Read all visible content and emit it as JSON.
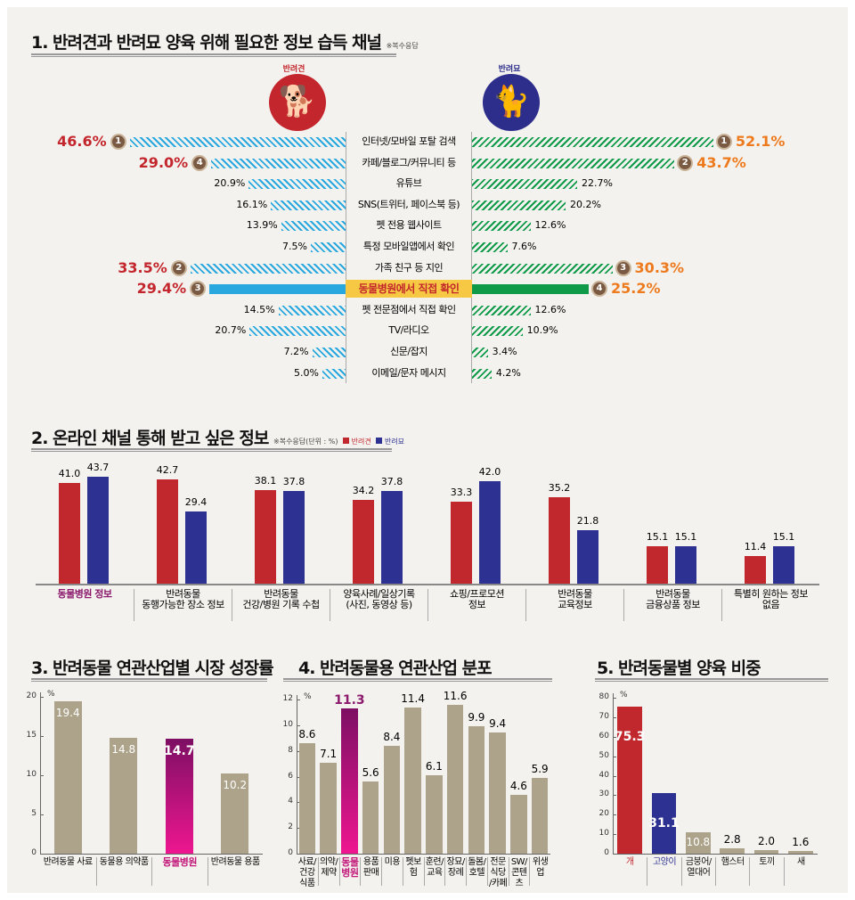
{
  "section1": {
    "title": "1. 반려견과 반려묘 양육 위해 필요한 정보 습득 채널",
    "note": "※복수응답",
    "dog_label": "반려견",
    "cat_label": "반려묘",
    "dog_color": "#c3262c",
    "cat_color": "#2d2e8c",
    "chart_data": {
      "type": "bar",
      "orientation": "horizontal-diverging",
      "categories": [
        "인터넷/모바일 포탈 검색",
        "카페/블로그/커뮤니티 등",
        "유튜브",
        "SNS(트위터, 페이스북 등)",
        "펫 전용 웹사이트",
        "특정 모바일앱에서 확인",
        "가족 친구 등 지인",
        "동물병원에서 직접 확인",
        "펫 전문점에서 직접 확인",
        "TV/라디오",
        "신문/잡지",
        "이메일/문자 메시지"
      ],
      "highlight": "동물병원에서 직접 확인",
      "series": [
        {
          "name": "반려견",
          "values": [
            46.6,
            29.0,
            20.9,
            16.1,
            13.9,
            7.5,
            33.5,
            29.4,
            14.5,
            20.7,
            7.2,
            5.0
          ],
          "labels": [
            "46.6%",
            "29.0%",
            "20.9%",
            "16.1%",
            "13.9%",
            "7.5%",
            "33.5%",
            "29.4%",
            "14.5%",
            "20.7%",
            "7.2%",
            "5.0%"
          ],
          "ranks": [
            1,
            4,
            null,
            null,
            null,
            null,
            2,
            3,
            null,
            null,
            null,
            null
          ],
          "color": "#29a8e0"
        },
        {
          "name": "반려묘",
          "values": [
            52.1,
            43.7,
            22.7,
            20.2,
            12.6,
            7.6,
            30.3,
            25.2,
            12.6,
            10.9,
            3.4,
            4.2
          ],
          "labels": [
            "52.1%",
            "43.7%",
            "22.7%",
            "20.2%",
            "12.6%",
            "7.6%",
            "30.3%",
            "25.2%",
            "12.6%",
            "10.9%",
            "3.4%",
            "4.2%"
          ],
          "ranks": [
            1,
            2,
            null,
            null,
            null,
            null,
            3,
            4,
            null,
            null,
            null,
            null
          ],
          "color": "#0e9a48"
        }
      ]
    }
  },
  "section2": {
    "title": "2. 온라인 채널 통해 받고 싶은 정보",
    "note": "※복수응답(단위 : %)",
    "legend": [
      "반려견",
      "반려묘"
    ],
    "chart_data": {
      "type": "bar",
      "categories": [
        "동물병원 정보",
        "반려동물\n동행가능한 장소 정보",
        "반려동물\n건강/병원 기록 수첩",
        "양육사례/일상기록\n(사진, 동영상 등)",
        "쇼핑/프로모션\n정보",
        "반려동물\n교육정보",
        "반려동물\n금융상품 정보",
        "특별히 원하는 정보\n없음"
      ],
      "highlight": "동물병원 정보",
      "series": [
        {
          "name": "반려견",
          "values": [
            41.0,
            42.7,
            38.1,
            34.2,
            33.3,
            35.2,
            15.1,
            11.4
          ],
          "color": "#c0282e"
        },
        {
          "name": "반려묘",
          "values": [
            43.7,
            29.4,
            37.8,
            37.8,
            42.0,
            21.8,
            15.1,
            15.1
          ],
          "color": "#2d3191"
        }
      ],
      "unit": "%"
    }
  },
  "section3": {
    "title": "3. 반려동물 연관산업별 시장 성장률",
    "chart_data": {
      "type": "bar",
      "categories": [
        "반려동물 사료",
        "동물용 의약품",
        "동물병원",
        "반려동물 용품"
      ],
      "values": [
        19.4,
        14.8,
        14.7,
        10.2
      ],
      "labels": [
        "19.4",
        "14.8",
        "14.7",
        "10.2"
      ],
      "highlight": "동물병원",
      "ylim": [
        0,
        20
      ],
      "yticks": [
        "0",
        "5",
        "10",
        "15",
        "20"
      ],
      "unit": "%"
    }
  },
  "section4": {
    "title": "4. 반려동물용 연관산업 분포",
    "chart_data": {
      "type": "bar",
      "categories": [
        "사료/\n건강식품",
        "의약/\n제약",
        "동물\n병원",
        "용품\n판매",
        "미용",
        "펫보험",
        "훈련/\n교육",
        "장묘/\n장례",
        "돌봄/\n호텔",
        "전문식당\n/카페",
        "SW/\n콘텐츠",
        "위생업"
      ],
      "values": [
        8.6,
        7.1,
        11.3,
        5.6,
        8.4,
        11.4,
        6.1,
        11.6,
        9.9,
        9.4,
        4.6,
        5.9
      ],
      "labels": [
        "8.6",
        "7.1",
        "11.3",
        "5.6",
        "8.4",
        "11.4",
        "6.1",
        "11.6",
        "9.9",
        "9.4",
        "4.6",
        "5.9"
      ],
      "highlight": "동물\n병원",
      "ylim": [
        0,
        12
      ],
      "yticks": [
        "0",
        "2",
        "4",
        "6",
        "8",
        "10",
        "12"
      ],
      "unit": "%"
    }
  },
  "section5": {
    "title": "5. 반려동물별 양육 비중",
    "chart_data": {
      "type": "bar",
      "categories": [
        "개",
        "고양이",
        "금붕어/\n열대어",
        "햄스터",
        "토끼",
        "새"
      ],
      "values": [
        75.3,
        31.1,
        10.8,
        2.8,
        2.0,
        1.6
      ],
      "labels": [
        "75.3",
        "31.1",
        "10.8",
        "2.8",
        "2.0",
        "1.6"
      ],
      "colors": [
        "#c0282e",
        "#2d3191",
        "#ada38a",
        "#ada38a",
        "#ada38a",
        "#ada38a"
      ],
      "ylim": [
        0,
        80
      ],
      "yticks": [
        "0",
        "10",
        "20",
        "30",
        "40",
        "50",
        "60",
        "70",
        "80"
      ],
      "unit": "%"
    }
  }
}
